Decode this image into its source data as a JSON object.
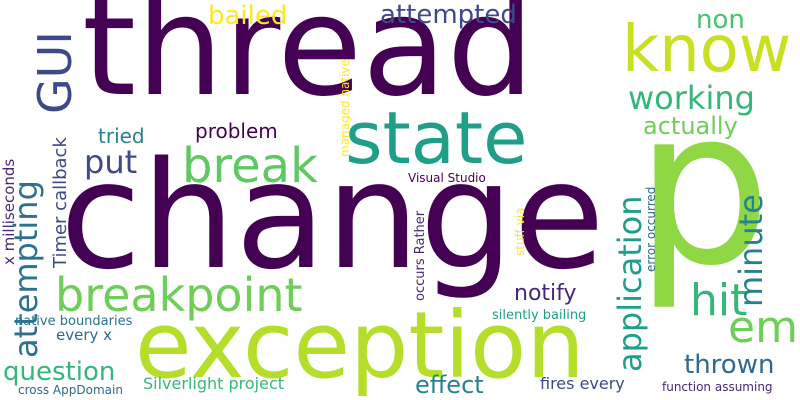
{
  "words": {
    "thread": "thread",
    "change": "change",
    "p": "p",
    "know": "know",
    "state": "state",
    "exception": "exception",
    "breakpoint": "breakpoint",
    "break": "break",
    "gui": "GUI",
    "bailed": "bailed",
    "attempted": "attempted",
    "non": "non",
    "working": "working",
    "actually": "actually",
    "put": "put",
    "tried": "tried",
    "problem": "problem",
    "x_milliseconds": "x milliseconds",
    "timer_callback": "Timer callback",
    "attempting": "attempting",
    "managed_native": "managed native",
    "application": "application",
    "minute": "minute",
    "hit": "hit",
    "em": "em",
    "visual_studio": "Visual Studio",
    "occurs_rather": "occurs Rather",
    "stuff_via": "stuff via",
    "error_occurred": "error occurred",
    "notify": "notify",
    "silently_bailing": "silently bailing",
    "native_boundaries": "native boundaries",
    "every_x": "every x",
    "question": "question",
    "thrown": "thrown",
    "silverlight_project": "Silverlight project",
    "effect": "effect",
    "fires_every": "fires every",
    "function_assuming": "function assuming",
    "cross_appdomain": "cross AppDomain"
  },
  "colors": {
    "dark_purple": "#440154",
    "indigo": "#482878",
    "blue_purple": "#3e4989",
    "slate_blue": "#31688e",
    "teal_blue": "#26828e",
    "teal": "#1f9e89",
    "green_teal": "#35b779",
    "green": "#6ece58",
    "lime": "#b5de2b",
    "yellow": "#fde725"
  }
}
